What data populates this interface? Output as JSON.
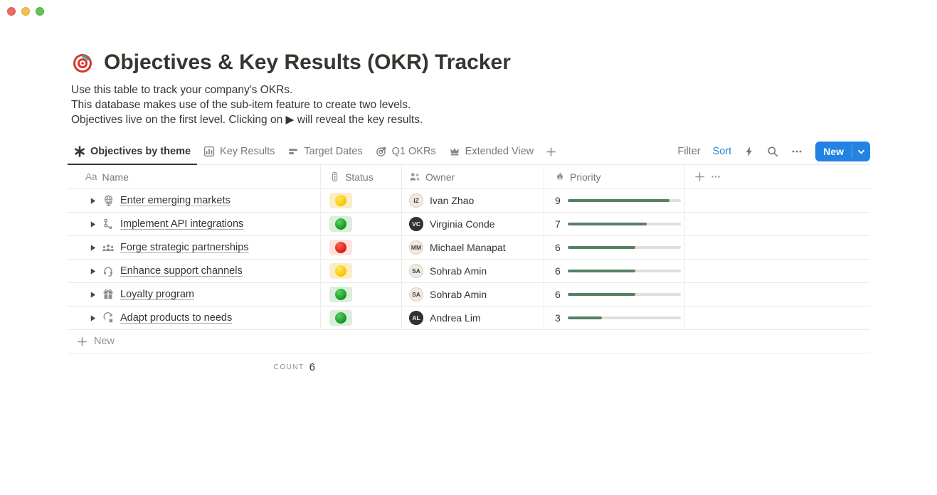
{
  "page": {
    "icon": "dartboard-target",
    "title": "Objectives & Key Results (OKR) Tracker",
    "description_lines": [
      "Use this table to track your company's OKRs.",
      "This database makes use of the sub-item feature to create two levels.",
      "Objectives live on the first level. Clicking on ▶ will reveal the key results."
    ]
  },
  "toolbar": {
    "views": [
      {
        "label": "Objectives by theme",
        "icon": "asterisk-view",
        "active": true
      },
      {
        "label": "Key Results",
        "icon": "chart-view",
        "active": false
      },
      {
        "label": "Target Dates",
        "icon": "timeline-view",
        "active": false
      },
      {
        "label": "Q1 OKRs",
        "icon": "target-view",
        "active": false
      },
      {
        "label": "Extended View",
        "icon": "crown-view",
        "active": false
      }
    ],
    "filter_label": "Filter",
    "sort_label": "Sort",
    "icons": [
      "lightning",
      "search",
      "more-ellipsis"
    ],
    "new_button_label": "New"
  },
  "table": {
    "columns": [
      {
        "label": "Name",
        "icon": "aa-text"
      },
      {
        "label": "Status",
        "icon": "traffic-light"
      },
      {
        "label": "Owner",
        "icon": "people"
      },
      {
        "label": "Priority",
        "icon": "flame"
      }
    ],
    "priority_max": 10,
    "rows": [
      {
        "icon": "globe",
        "name": "Enter emerging markets",
        "status": "yellow",
        "owner": "Ivan Zhao",
        "avatar_tone": "light",
        "priority": 9
      },
      {
        "icon": "workflow",
        "name": "Implement API integrations",
        "status": "green",
        "owner": "Virginia Conde",
        "avatar_tone": "dark",
        "priority": 7
      },
      {
        "icon": "people-group",
        "name": "Forge strategic partnerships",
        "status": "red",
        "owner": "Michael Manapat",
        "avatar_tone": "light",
        "priority": 6
      },
      {
        "icon": "headset",
        "name": "Enhance support channels",
        "status": "yellow",
        "owner": "Sohrab Amin",
        "avatar_tone": "light",
        "priority": 6
      },
      {
        "icon": "gift",
        "name": "Loyalty program",
        "status": "green",
        "owner": "Sohrab Amin",
        "avatar_tone": "light",
        "priority": 6
      },
      {
        "icon": "sync-box",
        "name": "Adapt products to needs",
        "status": "green",
        "owner": "Andrea Lim",
        "avatar_tone": "dark",
        "priority": 3
      }
    ],
    "new_row_label": "New",
    "footer": {
      "count_label": "count",
      "count_value": "6"
    }
  },
  "colors": {
    "accent_blue": "#2383e2",
    "progress_fill": "#548164",
    "status": {
      "yellow": {
        "bg": "#fdecc8",
        "dot_hi": "#ffe666",
        "dot": "#fcca00",
        "dot_lo": "#e0a400"
      },
      "green": {
        "bg": "#dbeddb",
        "dot_hi": "#5ecf67",
        "dot": "#16a024",
        "dot_lo": "#0c7d1c"
      },
      "red": {
        "bg": "#ffe2dd",
        "dot_hi": "#f4695c",
        "dot": "#df2116",
        "dot_lo": "#b81b11"
      }
    }
  }
}
